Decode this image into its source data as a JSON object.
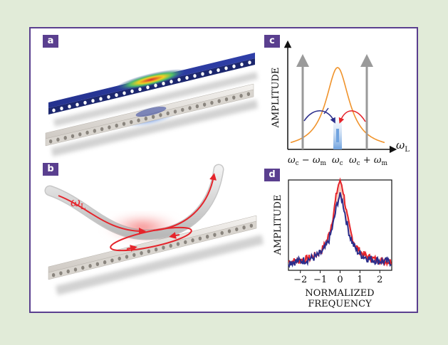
{
  "colors": {
    "frame": "#5a3f8f",
    "background": "#e1ebd8",
    "red": "#e5242b",
    "blue": "#2b2e8c",
    "orange": "#f0932b",
    "gray": "#9a9a9a"
  },
  "panels": {
    "a": {
      "label": "a"
    },
    "b": {
      "label": "b",
      "omega_label": "ω",
      "omega_sub": "L"
    },
    "c": {
      "label": "c",
      "ylabel": "AMPLITUDE",
      "xlabel_omega": "ω",
      "xlabel_sub": "L",
      "tick_left": "ωc − ωm",
      "tick_center": "ωc",
      "tick_right": "ωc + ωm",
      "chart_data": {
        "type": "line",
        "series": [
          {
            "shape": "lorentzian",
            "color": "#f0932b"
          }
        ],
        "arrows": [
          "ωc − ωm",
          "ωc",
          "ωc + ωm"
        ]
      }
    },
    "d": {
      "label": "d",
      "ylabel": "AMPLITUDE",
      "xlabel_line1": "NORMALIZED",
      "xlabel_line2": "FREQUENCY",
      "chart_data": {
        "type": "line",
        "x_ticks": [
          "−2",
          "−1",
          "0",
          "1",
          "2"
        ],
        "xlim": [
          -2.6,
          2.6
        ],
        "ylim": [
          0,
          1.1
        ],
        "series": [
          {
            "color": "#e5242b",
            "peak": 1.0,
            "width": 0.42,
            "baseline": 0.08
          },
          {
            "color": "#2b2e8c",
            "peak": 0.82,
            "width": 0.42,
            "baseline": 0.08
          }
        ]
      }
    }
  }
}
